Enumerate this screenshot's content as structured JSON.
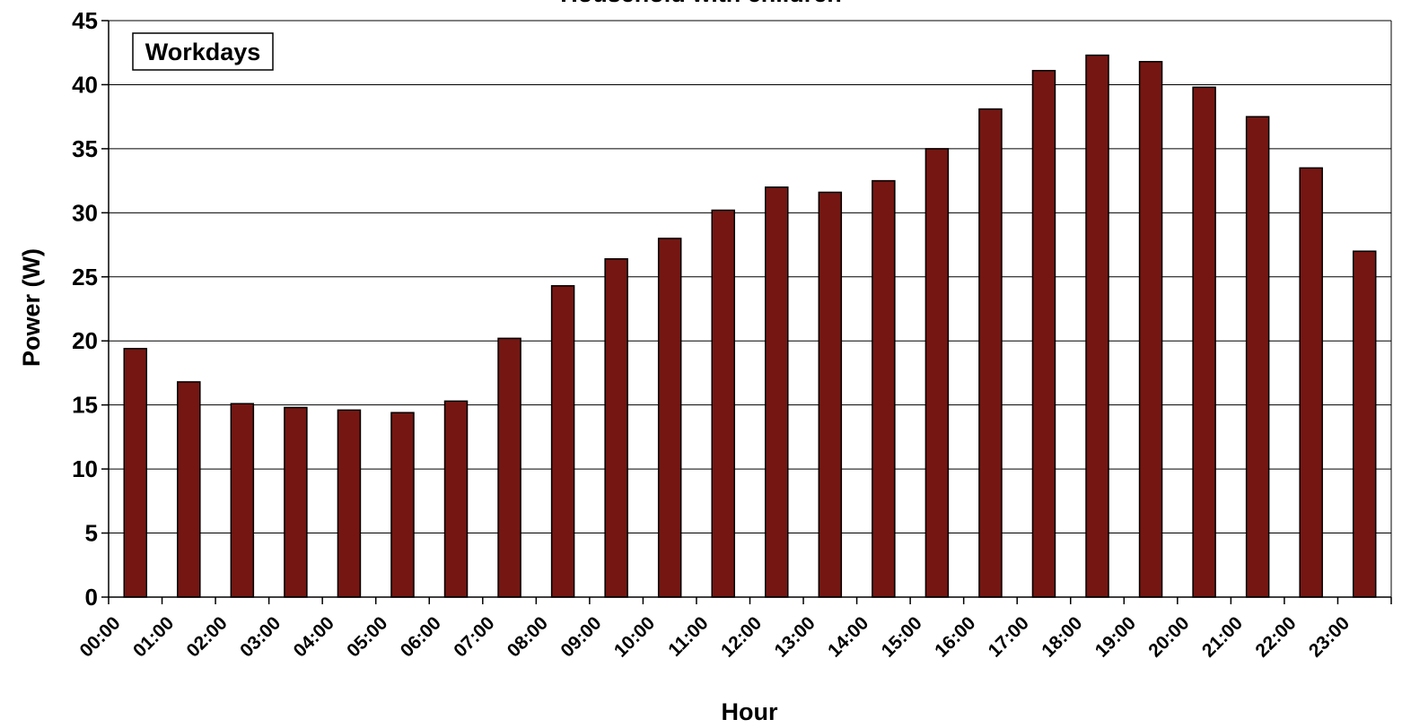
{
  "chart_data": {
    "type": "bar",
    "title": "Household with children",
    "annotation": "Workdays",
    "xlabel": "Hour",
    "ylabel": "Power (W)",
    "ylim": [
      0,
      45
    ],
    "yticks": [
      0,
      5,
      10,
      15,
      20,
      25,
      30,
      35,
      40,
      45
    ],
    "grid": true,
    "bar_color": "#751612",
    "categories": [
      "00:00",
      "01:00",
      "02:00",
      "03:00",
      "04:00",
      "05:00",
      "06:00",
      "07:00",
      "08:00",
      "09:00",
      "10:00",
      "11:00",
      "12:00",
      "13:00",
      "14:00",
      "15:00",
      "16:00",
      "17:00",
      "18:00",
      "19:00",
      "20:00",
      "21:00",
      "22:00",
      "23:00"
    ],
    "values": [
      19.4,
      16.8,
      15.1,
      14.8,
      14.6,
      14.4,
      15.3,
      20.2,
      24.3,
      26.4,
      28.0,
      30.2,
      32.0,
      31.6,
      32.5,
      35.0,
      38.1,
      41.1,
      42.3,
      41.8,
      39.8,
      37.5,
      33.5,
      27.0
    ]
  }
}
